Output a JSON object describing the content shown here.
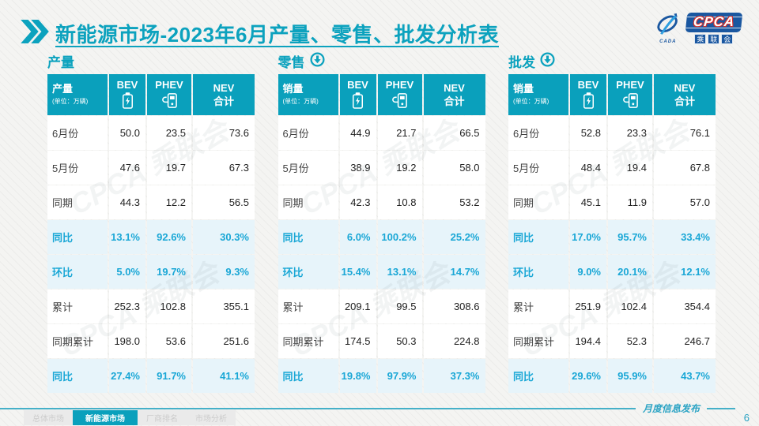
{
  "header": {
    "title": "新能源市场-2023年6月产量、零售、批发分析表",
    "logo": {
      "swoosh_text": "CADA",
      "cpca": "CPCA",
      "cn": [
        "乘",
        "联",
        "会"
      ]
    }
  },
  "columns": {
    "bev": "BEV",
    "phev": "PHEV",
    "nev_line1": "NEV",
    "nev_line2": "合计"
  },
  "watermark": "CPCA 乘联会",
  "tables": [
    {
      "section": "产量",
      "corner_label": "产量",
      "unit": "(单位：万辆)",
      "has_arrow": false,
      "rows": [
        {
          "label": "6月份",
          "values": [
            "50.0",
            "23.5",
            "73.6"
          ],
          "highlight": false
        },
        {
          "label": "5月份",
          "values": [
            "47.6",
            "19.7",
            "67.3"
          ],
          "highlight": false
        },
        {
          "label": "同期",
          "values": [
            "44.3",
            "12.2",
            "56.5"
          ],
          "highlight": false
        },
        {
          "label": "同比",
          "values": [
            "13.1%",
            "92.6%",
            "30.3%"
          ],
          "highlight": true
        },
        {
          "label": "环比",
          "values": [
            "5.0%",
            "19.7%",
            "9.3%"
          ],
          "highlight": true
        },
        {
          "label": "累计",
          "values": [
            "252.3",
            "102.8",
            "355.1"
          ],
          "highlight": false
        },
        {
          "label": "同期累计",
          "values": [
            "198.0",
            "53.6",
            "251.6"
          ],
          "highlight": false
        },
        {
          "label": "同比",
          "values": [
            "27.4%",
            "91.7%",
            "41.1%"
          ],
          "highlight": true
        }
      ]
    },
    {
      "section": "零售",
      "corner_label": "销量",
      "unit": "(单位：万辆)",
      "has_arrow": true,
      "rows": [
        {
          "label": "6月份",
          "values": [
            "44.9",
            "21.7",
            "66.5"
          ],
          "highlight": false
        },
        {
          "label": "5月份",
          "values": [
            "38.9",
            "19.2",
            "58.0"
          ],
          "highlight": false
        },
        {
          "label": "同期",
          "values": [
            "42.3",
            "10.8",
            "53.2"
          ],
          "highlight": false
        },
        {
          "label": "同比",
          "values": [
            "6.0%",
            "100.2%",
            "25.2%"
          ],
          "highlight": true
        },
        {
          "label": "环比",
          "values": [
            "15.4%",
            "13.1%",
            "14.7%"
          ],
          "highlight": true
        },
        {
          "label": "累计",
          "values": [
            "209.1",
            "99.5",
            "308.6"
          ],
          "highlight": false
        },
        {
          "label": "同期累计",
          "values": [
            "174.5",
            "50.3",
            "224.8"
          ],
          "highlight": false
        },
        {
          "label": "同比",
          "values": [
            "19.8%",
            "97.9%",
            "37.3%"
          ],
          "highlight": true
        }
      ]
    },
    {
      "section": "批发",
      "corner_label": "销量",
      "unit": "(单位：万辆)",
      "has_arrow": true,
      "rows": [
        {
          "label": "6月份",
          "values": [
            "52.8",
            "23.3",
            "76.1"
          ],
          "highlight": false
        },
        {
          "label": "5月份",
          "values": [
            "48.4",
            "19.4",
            "67.8"
          ],
          "highlight": false
        },
        {
          "label": "同期",
          "values": [
            "45.1",
            "11.9",
            "57.0"
          ],
          "highlight": false
        },
        {
          "label": "同比",
          "values": [
            "17.0%",
            "95.7%",
            "33.4%"
          ],
          "highlight": true
        },
        {
          "label": "环比",
          "values": [
            "9.0%",
            "20.1%",
            "12.1%"
          ],
          "highlight": true
        },
        {
          "label": "累计",
          "values": [
            "251.9",
            "102.4",
            "354.4"
          ],
          "highlight": false
        },
        {
          "label": "同期累计",
          "values": [
            "194.4",
            "52.3",
            "246.7"
          ],
          "highlight": false
        },
        {
          "label": "同比",
          "values": [
            "29.6%",
            "95.9%",
            "43.7%"
          ],
          "highlight": true
        }
      ]
    }
  ],
  "footer": {
    "tabs": [
      {
        "label": "总体市场",
        "active": false
      },
      {
        "label": "新能源市场",
        "active": true
      },
      {
        "label": "厂商排名",
        "active": false
      },
      {
        "label": "市场分析",
        "active": false
      }
    ],
    "right_text": "月度信息发布",
    "page": "6"
  },
  "colors": {
    "teal": "#0aa0bc",
    "title_teal": "#0ca2be",
    "highlight_text": "#1aa7d6",
    "highlight_bg": "#e7f4fa",
    "logo_blue": "#1a57a0",
    "logo_red": "#d6302c",
    "footer_line": "#45b0c8"
  }
}
